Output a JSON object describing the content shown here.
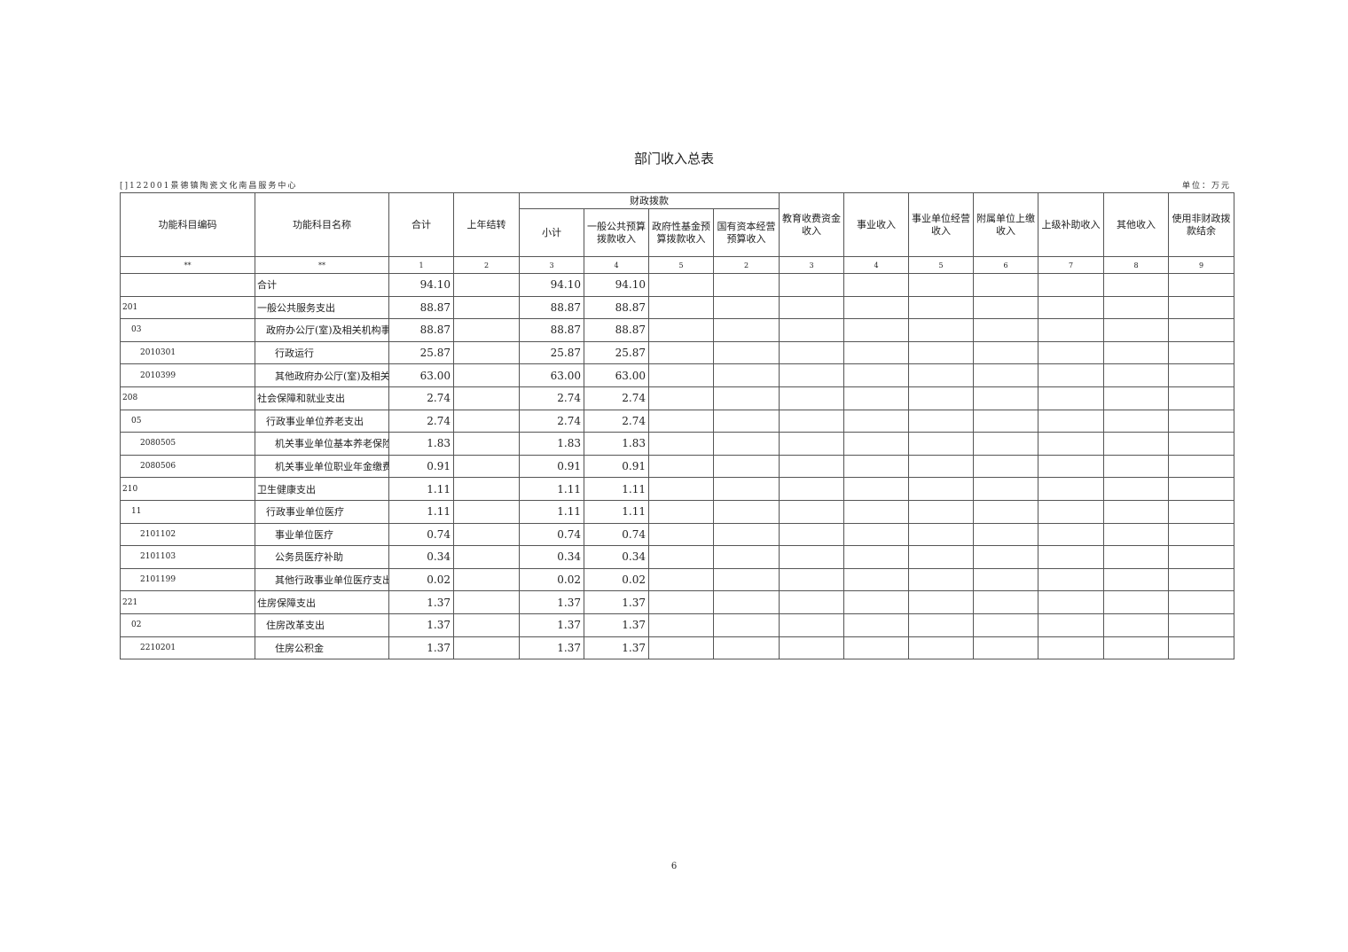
{
  "title": "部门收入总表",
  "org": "[]122001景德镇陶瓷文化南昌服务中心",
  "unit": "单位：万元",
  "header": {
    "code": "功能科目编码",
    "name": "功能科目名称",
    "total": "合计",
    "carryover": "上年结转",
    "fiscal_group": "财政拨款",
    "subtotal": "小计",
    "general_budget": "一般公共预算拨款收入",
    "gov_fund": "政府性基金预算拨款收入",
    "state_capital": "国有资本经营预算收入",
    "edu_fee": "教育收费资金收入",
    "business": "事业收入",
    "operating": "事业单位经营收入",
    "affiliated": "附属单位上缴收入",
    "superior": "上级补助收入",
    "other": "其他收入",
    "non_fiscal": "使用非财政拨款结余"
  },
  "index_row": [
    "**",
    "**",
    "1",
    "2",
    "3",
    "4",
    "5",
    "2",
    "3",
    "4",
    "5",
    "6",
    "7",
    "8",
    "9"
  ],
  "rows": [
    {
      "code": "",
      "name": "合计",
      "total": "94.10",
      "subtotal": "94.10",
      "general": "94.10"
    },
    {
      "code": "201",
      "name": "一般公共服务支出",
      "total": "88.87",
      "subtotal": "88.87",
      "general": "88.87"
    },
    {
      "code": "03",
      "name": "政府办公厅(室)及相关机构事务",
      "total": "88.87",
      "subtotal": "88.87",
      "general": "88.87"
    },
    {
      "code": "2010301",
      "name": "行政运行",
      "total": "25.87",
      "subtotal": "25.87",
      "general": "25.87"
    },
    {
      "code": "2010399",
      "name": "其他政府办公厅(室)及相关机构事务支出",
      "total": "63.00",
      "subtotal": "63.00",
      "general": "63.00"
    },
    {
      "code": "208",
      "name": "社会保障和就业支出",
      "total": "2.74",
      "subtotal": "2.74",
      "general": "2.74"
    },
    {
      "code": "05",
      "name": "行政事业单位养老支出",
      "total": "2.74",
      "subtotal": "2.74",
      "general": "2.74"
    },
    {
      "code": "2080505",
      "name": "机关事业单位基本养老保险缴费支出",
      "total": "1.83",
      "subtotal": "1.83",
      "general": "1.83"
    },
    {
      "code": "2080506",
      "name": "机关事业单位职业年金缴费支出",
      "total": "0.91",
      "subtotal": "0.91",
      "general": "0.91"
    },
    {
      "code": "210",
      "name": "卫生健康支出",
      "total": "1.11",
      "subtotal": "1.11",
      "general": "1.11"
    },
    {
      "code": "11",
      "name": "行政事业单位医疗",
      "total": "1.11",
      "subtotal": "1.11",
      "general": "1.11"
    },
    {
      "code": "2101102",
      "name": "事业单位医疗",
      "total": "0.74",
      "subtotal": "0.74",
      "general": "0.74"
    },
    {
      "code": "2101103",
      "name": "公务员医疗补助",
      "total": "0.34",
      "subtotal": "0.34",
      "general": "0.34"
    },
    {
      "code": "2101199",
      "name": "其他行政事业单位医疗支出",
      "total": "0.02",
      "subtotal": "0.02",
      "general": "0.02"
    },
    {
      "code": "221",
      "name": "住房保障支出",
      "total": "1.37",
      "subtotal": "1.37",
      "general": "1.37"
    },
    {
      "code": "02",
      "name": "住房改革支出",
      "total": "1.37",
      "subtotal": "1.37",
      "general": "1.37"
    },
    {
      "code": "2210201",
      "name": "住房公积金",
      "total": "1.37",
      "subtotal": "1.37",
      "general": "1.37"
    }
  ],
  "page_number": "6"
}
